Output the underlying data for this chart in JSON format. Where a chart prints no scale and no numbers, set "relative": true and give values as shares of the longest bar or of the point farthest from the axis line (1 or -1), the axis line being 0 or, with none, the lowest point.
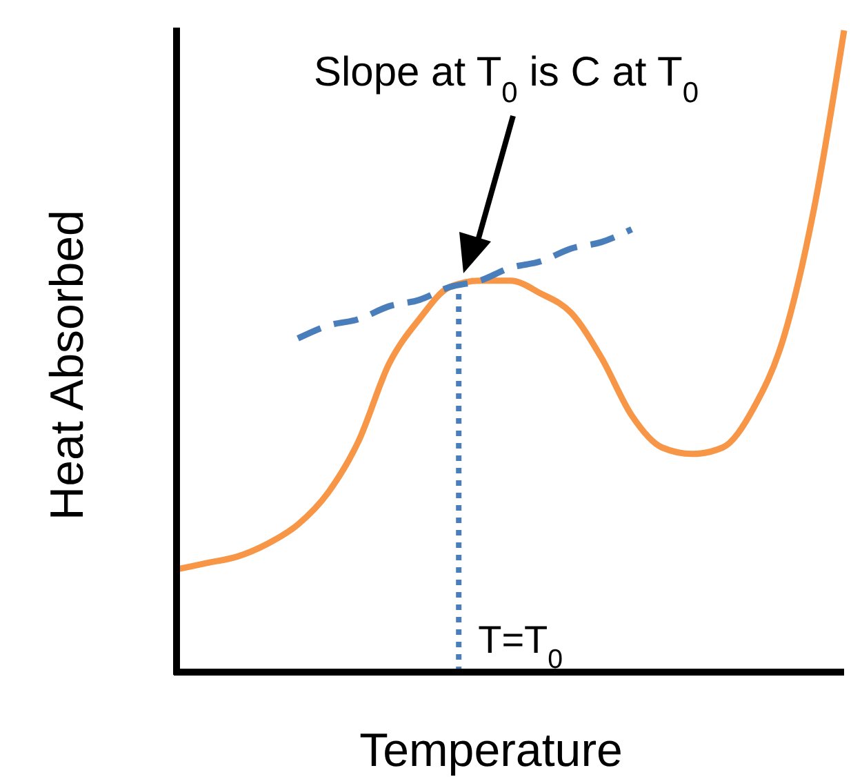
{
  "chart_data": {
    "type": "line",
    "relative": true,
    "xlabel": "Temperature",
    "ylabel": "Heat Absorbed",
    "categories": [
      null,
      null,
      null,
      null,
      null,
      null,
      null,
      null,
      null,
      null,
      null,
      null,
      null,
      null,
      null,
      null,
      null,
      null,
      null,
      null,
      null,
      null,
      null
    ],
    "series": [
      {
        "color": "#f79646",
        "values": [
          0.16,
          0.17,
          0.18,
          0.2,
          0.23,
          0.28,
          0.36,
          0.48,
          0.55,
          0.6,
          0.61,
          0.61,
          0.59,
          0.56,
          0.49,
          0.4,
          0.35,
          0.34,
          0.35,
          0.41,
          0.52,
          0.72,
          1.0
        ]
      },
      {
        "color": "#4a7ebb",
        "line_style": "dashed",
        "values": [
          null,
          null,
          null,
          null,
          0.52,
          0.54,
          0.55,
          0.57,
          0.58,
          0.6,
          0.61,
          0.63,
          0.64,
          0.66,
          0.67,
          0.69,
          null,
          null,
          null,
          null,
          null,
          null,
          null
        ]
      }
    ],
    "annotations": [
      "Slope at T$_{0}$ is C at T$_{0}$",
      "T=T$_{0}$"
    ]
  }
}
